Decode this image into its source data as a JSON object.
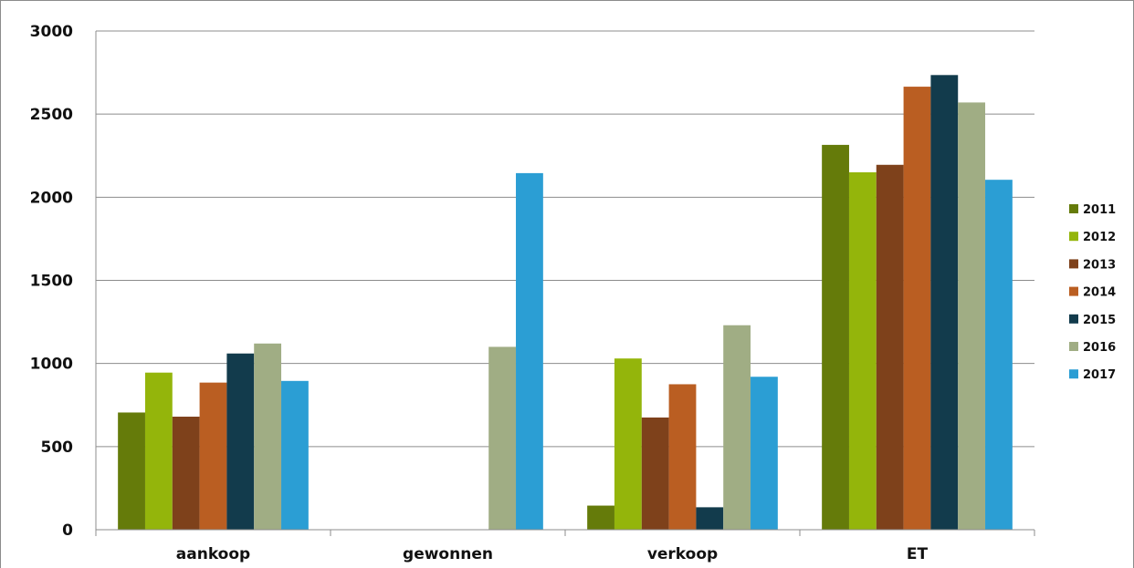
{
  "chart_data": {
    "type": "bar",
    "categories": [
      "aankoop",
      "gewonnen",
      "verkoop",
      "ET"
    ],
    "series": [
      {
        "name": "2011",
        "color": "#657b0a",
        "values": [
          705,
          0,
          145,
          2315
        ]
      },
      {
        "name": "2012",
        "color": "#94b50b",
        "values": [
          945,
          0,
          1030,
          2150
        ]
      },
      {
        "name": "2013",
        "color": "#7e411b",
        "values": [
          680,
          0,
          675,
          2195
        ]
      },
      {
        "name": "2014",
        "color": "#ba5e22",
        "values": [
          885,
          0,
          875,
          2665
        ]
      },
      {
        "name": "2015",
        "color": "#123b4c",
        "values": [
          1060,
          0,
          135,
          2735
        ]
      },
      {
        "name": "2016",
        "color": "#a0ad84",
        "values": [
          1120,
          1100,
          1230,
          2570
        ]
      },
      {
        "name": "2017",
        "color": "#2b9ed4",
        "values": [
          895,
          2145,
          920,
          2105
        ]
      }
    ],
    "yticks": [
      "0",
      "500",
      "1000",
      "1500",
      "2000",
      "2500",
      "3000"
    ],
    "ylim": [
      0,
      3000
    ],
    "grid": true,
    "legend_position": "right"
  }
}
